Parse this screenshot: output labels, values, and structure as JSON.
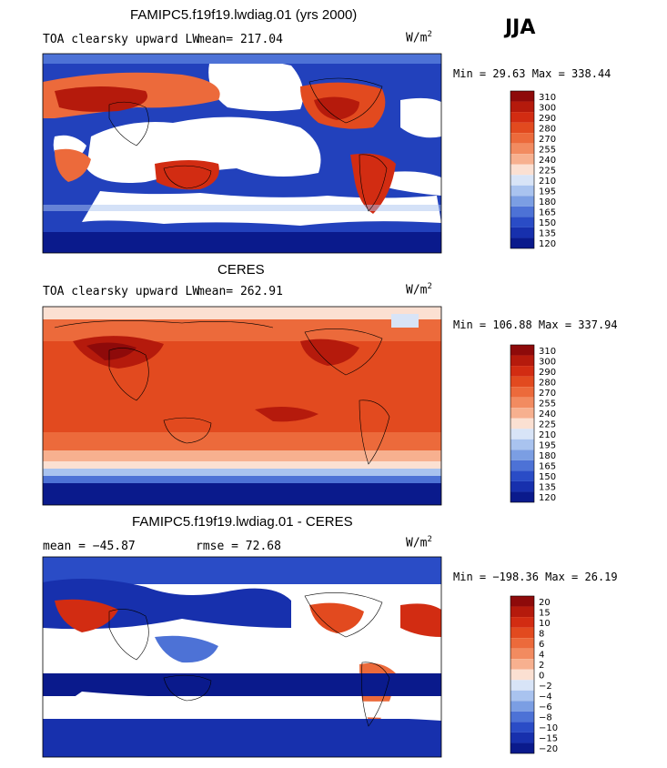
{
  "season": "JJA",
  "panels": [
    {
      "title": "FAMIPC5.f19f19.lwdiag.01 (yrs 2000)",
      "variable": "TOA clearsky upward LW",
      "stat1": "mean= 217.04",
      "stat2": "",
      "units_base": "W/m",
      "units_exp": "2",
      "minmax": "Min =  29.63 Max = 338.44",
      "colorbar": [
        "310",
        "300",
        "290",
        "280",
        "270",
        "255",
        "240",
        "225",
        "210",
        "195",
        "180",
        "165",
        "150",
        "135",
        "120"
      ]
    },
    {
      "title": "CERES",
      "variable": "TOA clearsky upward LW",
      "stat1": "mean= 262.91",
      "stat2": "",
      "units_base": "W/m",
      "units_exp": "2",
      "minmax": "Min = 106.88 Max = 337.94",
      "colorbar": [
        "310",
        "300",
        "290",
        "280",
        "270",
        "255",
        "240",
        "225",
        "210",
        "195",
        "180",
        "165",
        "150",
        "135",
        "120"
      ]
    },
    {
      "title": "FAMIPC5.f19f19.lwdiag.01 - CERES",
      "variable": "",
      "stat1": "mean = −45.87",
      "stat2": "rmse =  72.68",
      "units_base": "W/m",
      "units_exp": "2",
      "minmax": "Min = −198.36 Max =  26.19",
      "colorbar": [
        "20",
        "15",
        "10",
        "8",
        "6",
        "4",
        "2",
        "0",
        "−2",
        "−4",
        "−6",
        "−8",
        "−10",
        "−15",
        "−20"
      ]
    }
  ],
  "colors": {
    "scale": [
      "#8e0a0a",
      "#b51a0c",
      "#d22c12",
      "#e24a1f",
      "#ec6a3b",
      "#f28b60",
      "#f7b08f",
      "#fbe0d2",
      "#d8e4f7",
      "#a9c3ef",
      "#7b9ee3",
      "#4d72d6",
      "#2a4cc6",
      "#1730ad",
      "#0a1a8c"
    ]
  },
  "chart_data": [
    {
      "type": "heatmap",
      "title": "FAMIPC5.f19f19.lwdiag.01 (yrs 2000)",
      "subtitle": "TOA clearsky upward LW",
      "mean": 217.04,
      "min": 29.63,
      "max": 338.44,
      "units": "W/m2",
      "contour_levels": [
        120,
        135,
        150,
        165,
        180,
        195,
        210,
        225,
        240,
        255,
        270,
        280,
        290,
        300,
        310
      ]
    },
    {
      "type": "heatmap",
      "title": "CERES",
      "subtitle": "TOA clearsky upward LW",
      "mean": 262.91,
      "min": 106.88,
      "max": 337.94,
      "units": "W/m2",
      "contour_levels": [
        120,
        135,
        150,
        165,
        180,
        195,
        210,
        225,
        240,
        255,
        270,
        280,
        290,
        300,
        310
      ]
    },
    {
      "type": "heatmap",
      "title": "FAMIPC5.f19f19.lwdiag.01 - CERES",
      "mean": -45.87,
      "rmse": 72.68,
      "min": -198.36,
      "max": 26.19,
      "units": "W/m2",
      "contour_levels": [
        -20,
        -15,
        -10,
        -8,
        -6,
        -4,
        -2,
        0,
        2,
        4,
        6,
        8,
        10,
        15,
        20
      ]
    }
  ]
}
